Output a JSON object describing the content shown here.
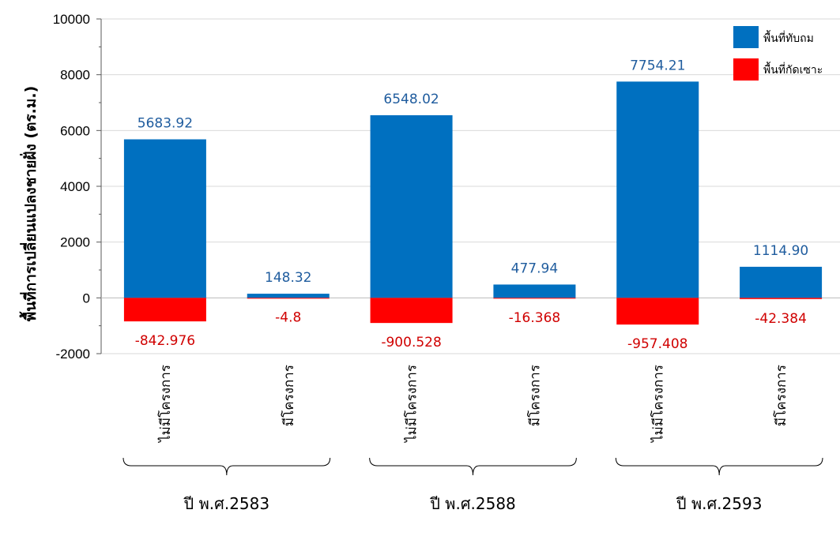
{
  "chart_data": {
    "type": "bar",
    "ylabel": "พื้นที่การเปลี่ยนแปลงชายฝั่ง (ตร.ม.)",
    "ylim": [
      -2000,
      10000
    ],
    "yticks": [
      -2000,
      0,
      2000,
      4000,
      6000,
      8000,
      10000
    ],
    "grid": true,
    "legend_position": "top-right",
    "categories": [
      "ไม่มีโครงการ",
      "มีโครงการ",
      "ไม่มีโครงการ",
      "มีโครงการ",
      "ไม่มีโครงการ",
      "มีโครงการ"
    ],
    "groups": [
      {
        "label": "ปี พ.ศ.2583",
        "category_indices": [
          0,
          1
        ]
      },
      {
        "label": "ปี พ.ศ.2588",
        "category_indices": [
          2,
          3
        ]
      },
      {
        "label": "ปี พ.ศ.2593",
        "category_indices": [
          4,
          5
        ]
      }
    ],
    "series": [
      {
        "name": "พื้นที่ทับถม",
        "color": "#0070C0",
        "values": [
          5683.92,
          148.32,
          6548.02,
          477.94,
          7754.21,
          1114.9
        ],
        "labels": [
          "5683.92",
          "148.32",
          "6548.02",
          "477.94",
          "7754.21",
          "1114.90"
        ]
      },
      {
        "name": "พื้นที่กัดเซาะ",
        "color": "#FF0000",
        "values": [
          -842.976,
          -4.8,
          -900.528,
          -16.368,
          -957.408,
          -42.384
        ],
        "labels": [
          "-842.976",
          "-4.8",
          "-900.528",
          "-16.368",
          "-957.408",
          "-42.384"
        ]
      }
    ]
  }
}
